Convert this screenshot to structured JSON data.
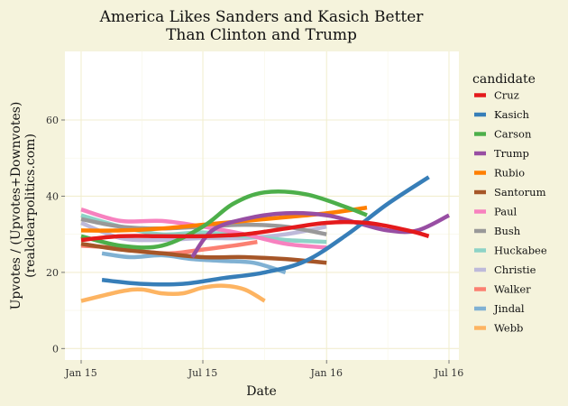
{
  "chart_data": {
    "type": "line",
    "title": [
      "America Likes Sanders and Kasich Better",
      "Than Clinton and Trump"
    ],
    "xlabel": "Date",
    "ylabel": [
      "Upvotes / (Upvotes+Downvotes)",
      "(realclearpolitics.com)"
    ],
    "x_ticks": [
      "Jan 15",
      "Jul 15",
      "Jan 16",
      "Jul 16"
    ],
    "y_ticks": [
      0,
      20,
      40,
      60
    ],
    "ylim": [
      -3,
      78
    ],
    "legend_title": "candidate",
    "legend_position": "right",
    "grid": true,
    "series": [
      {
        "name": "Cruz",
        "color": "#e41a1c",
        "points": [
          [
            "2015-01-01",
            28.5
          ],
          [
            "2015-03-01",
            29.5
          ],
          [
            "2015-05-01",
            29.5
          ],
          [
            "2015-07-01",
            29.5
          ],
          [
            "2015-09-01",
            30
          ],
          [
            "2015-11-01",
            31.5
          ],
          [
            "2016-01-01",
            33
          ],
          [
            "2016-03-01",
            33
          ],
          [
            "2016-05-01",
            31
          ],
          [
            "2016-06-01",
            29.5
          ]
        ]
      },
      {
        "name": "Kasich",
        "color": "#377eb8",
        "points": [
          [
            "2015-02-01",
            18
          ],
          [
            "2015-04-01",
            17
          ],
          [
            "2015-06-01",
            17
          ],
          [
            "2015-08-01",
            18.5
          ],
          [
            "2015-10-01",
            20
          ],
          [
            "2015-12-01",
            23
          ],
          [
            "2016-02-01",
            30
          ],
          [
            "2016-04-01",
            38
          ],
          [
            "2016-06-01",
            45
          ]
        ]
      },
      {
        "name": "Carson",
        "color": "#4daf4a",
        "points": [
          [
            "2015-01-01",
            29.5
          ],
          [
            "2015-03-01",
            27
          ],
          [
            "2015-05-01",
            27
          ],
          [
            "2015-07-01",
            32
          ],
          [
            "2015-08-15",
            38
          ],
          [
            "2015-10-01",
            41
          ],
          [
            "2015-12-01",
            40.5
          ],
          [
            "2016-02-01",
            37
          ],
          [
            "2016-03-01",
            35
          ]
        ]
      },
      {
        "name": "Trump",
        "color": "#984ea3",
        "points": [
          [
            "2015-06-15",
            24
          ],
          [
            "2015-07-15",
            31
          ],
          [
            "2015-09-01",
            34
          ],
          [
            "2015-11-01",
            35.5
          ],
          [
            "2016-01-01",
            35
          ],
          [
            "2016-02-15",
            33
          ],
          [
            "2016-04-01",
            31
          ],
          [
            "2016-05-15",
            31
          ],
          [
            "2016-07-01",
            35
          ]
        ]
      },
      {
        "name": "Rubio",
        "color": "#ff7f00",
        "points": [
          [
            "2015-01-01",
            31
          ],
          [
            "2015-03-01",
            31
          ],
          [
            "2015-05-01",
            31.5
          ],
          [
            "2015-07-01",
            32.5
          ],
          [
            "2015-09-01",
            33.5
          ],
          [
            "2015-11-01",
            34.5
          ],
          [
            "2016-01-01",
            35.5
          ],
          [
            "2016-03-01",
            37
          ]
        ]
      },
      {
        "name": "Santorum",
        "color": "#a65628",
        "points": [
          [
            "2015-01-01",
            27.5
          ],
          [
            "2015-03-01",
            26
          ],
          [
            "2015-05-01",
            25
          ],
          [
            "2015-07-01",
            24
          ],
          [
            "2015-09-01",
            24
          ],
          [
            "2015-11-01",
            23.5
          ],
          [
            "2016-01-01",
            22.5
          ]
        ]
      },
      {
        "name": "Paul",
        "color": "#f781bf",
        "points": [
          [
            "2015-01-01",
            36.5
          ],
          [
            "2015-03-01",
            33.5
          ],
          [
            "2015-05-01",
            33.5
          ],
          [
            "2015-07-01",
            32
          ],
          [
            "2015-09-01",
            30
          ],
          [
            "2015-11-01",
            27.5
          ],
          [
            "2016-01-01",
            26.5
          ]
        ]
      },
      {
        "name": "Bush",
        "color": "#999999",
        "points": [
          [
            "2015-01-01",
            34
          ],
          [
            "2015-03-01",
            32
          ],
          [
            "2015-05-01",
            31.5
          ],
          [
            "2015-07-01",
            32
          ],
          [
            "2015-09-01",
            32.5
          ],
          [
            "2015-11-01",
            32
          ],
          [
            "2016-01-01",
            30
          ]
        ]
      },
      {
        "name": "Huckabee",
        "color": "#8dd3c7",
        "points": [
          [
            "2015-01-01",
            35
          ],
          [
            "2015-03-01",
            32
          ],
          [
            "2015-05-01",
            30
          ],
          [
            "2015-07-01",
            30.5
          ],
          [
            "2015-09-01",
            29.5
          ],
          [
            "2015-11-01",
            28.5
          ],
          [
            "2016-01-01",
            28
          ]
        ]
      },
      {
        "name": "Christie",
        "color": "#bebada",
        "points": [
          [
            "2015-01-01",
            33
          ],
          [
            "2015-03-01",
            29
          ],
          [
            "2015-05-01",
            28.5
          ],
          [
            "2015-07-01",
            29
          ],
          [
            "2015-09-01",
            29
          ],
          [
            "2015-11-01",
            30
          ],
          [
            "2016-01-01",
            32
          ]
        ]
      },
      {
        "name": "Walker",
        "color": "#fb8072",
        "points": [
          [
            "2015-01-01",
            27
          ],
          [
            "2015-02-15",
            26.5
          ],
          [
            "2015-04-01",
            25.5
          ],
          [
            "2015-05-15",
            25
          ],
          [
            "2015-07-01",
            26
          ],
          [
            "2015-08-15",
            27
          ],
          [
            "2015-09-20",
            28
          ]
        ]
      },
      {
        "name": "Jindal",
        "color": "#80b1d3",
        "points": [
          [
            "2015-02-01",
            25
          ],
          [
            "2015-03-15",
            24
          ],
          [
            "2015-05-01",
            24.5
          ],
          [
            "2015-06-15",
            23.5
          ],
          [
            "2015-08-01",
            23
          ],
          [
            "2015-09-15",
            22.5
          ],
          [
            "2015-11-01",
            20
          ]
        ]
      },
      {
        "name": "Webb",
        "color": "#fdb462",
        "points": [
          [
            "2015-01-01",
            12.5
          ],
          [
            "2015-03-01",
            15
          ],
          [
            "2015-04-01",
            15.5
          ],
          [
            "2015-05-01",
            14.5
          ],
          [
            "2015-06-01",
            14.5
          ],
          [
            "2015-07-01",
            16
          ],
          [
            "2015-08-01",
            16.5
          ],
          [
            "2015-09-01",
            15.5
          ],
          [
            "2015-10-01",
            12.5
          ]
        ]
      }
    ]
  }
}
